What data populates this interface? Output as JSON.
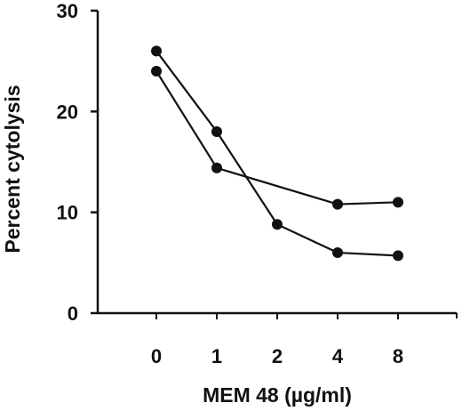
{
  "chart_data": {
    "type": "line",
    "title": "",
    "xlabel": "MEM 48 (µg/ml)",
    "ylabel": "Percent cytolysis",
    "categories": [
      "0",
      "1",
      "2",
      "4",
      "8"
    ],
    "ylim": [
      0,
      30
    ],
    "yticks": [
      "0",
      "10",
      "20",
      "30"
    ],
    "grid": false,
    "legend": "none",
    "series": [
      {
        "values": [
          26,
          18,
          8.8,
          6.0,
          5.7
        ]
      },
      {
        "values": [
          24,
          14.4,
          null,
          10.8,
          11.0
        ]
      }
    ],
    "colors": {
      "line": "#111111",
      "marker": "#111111",
      "axis": "#111111"
    }
  }
}
